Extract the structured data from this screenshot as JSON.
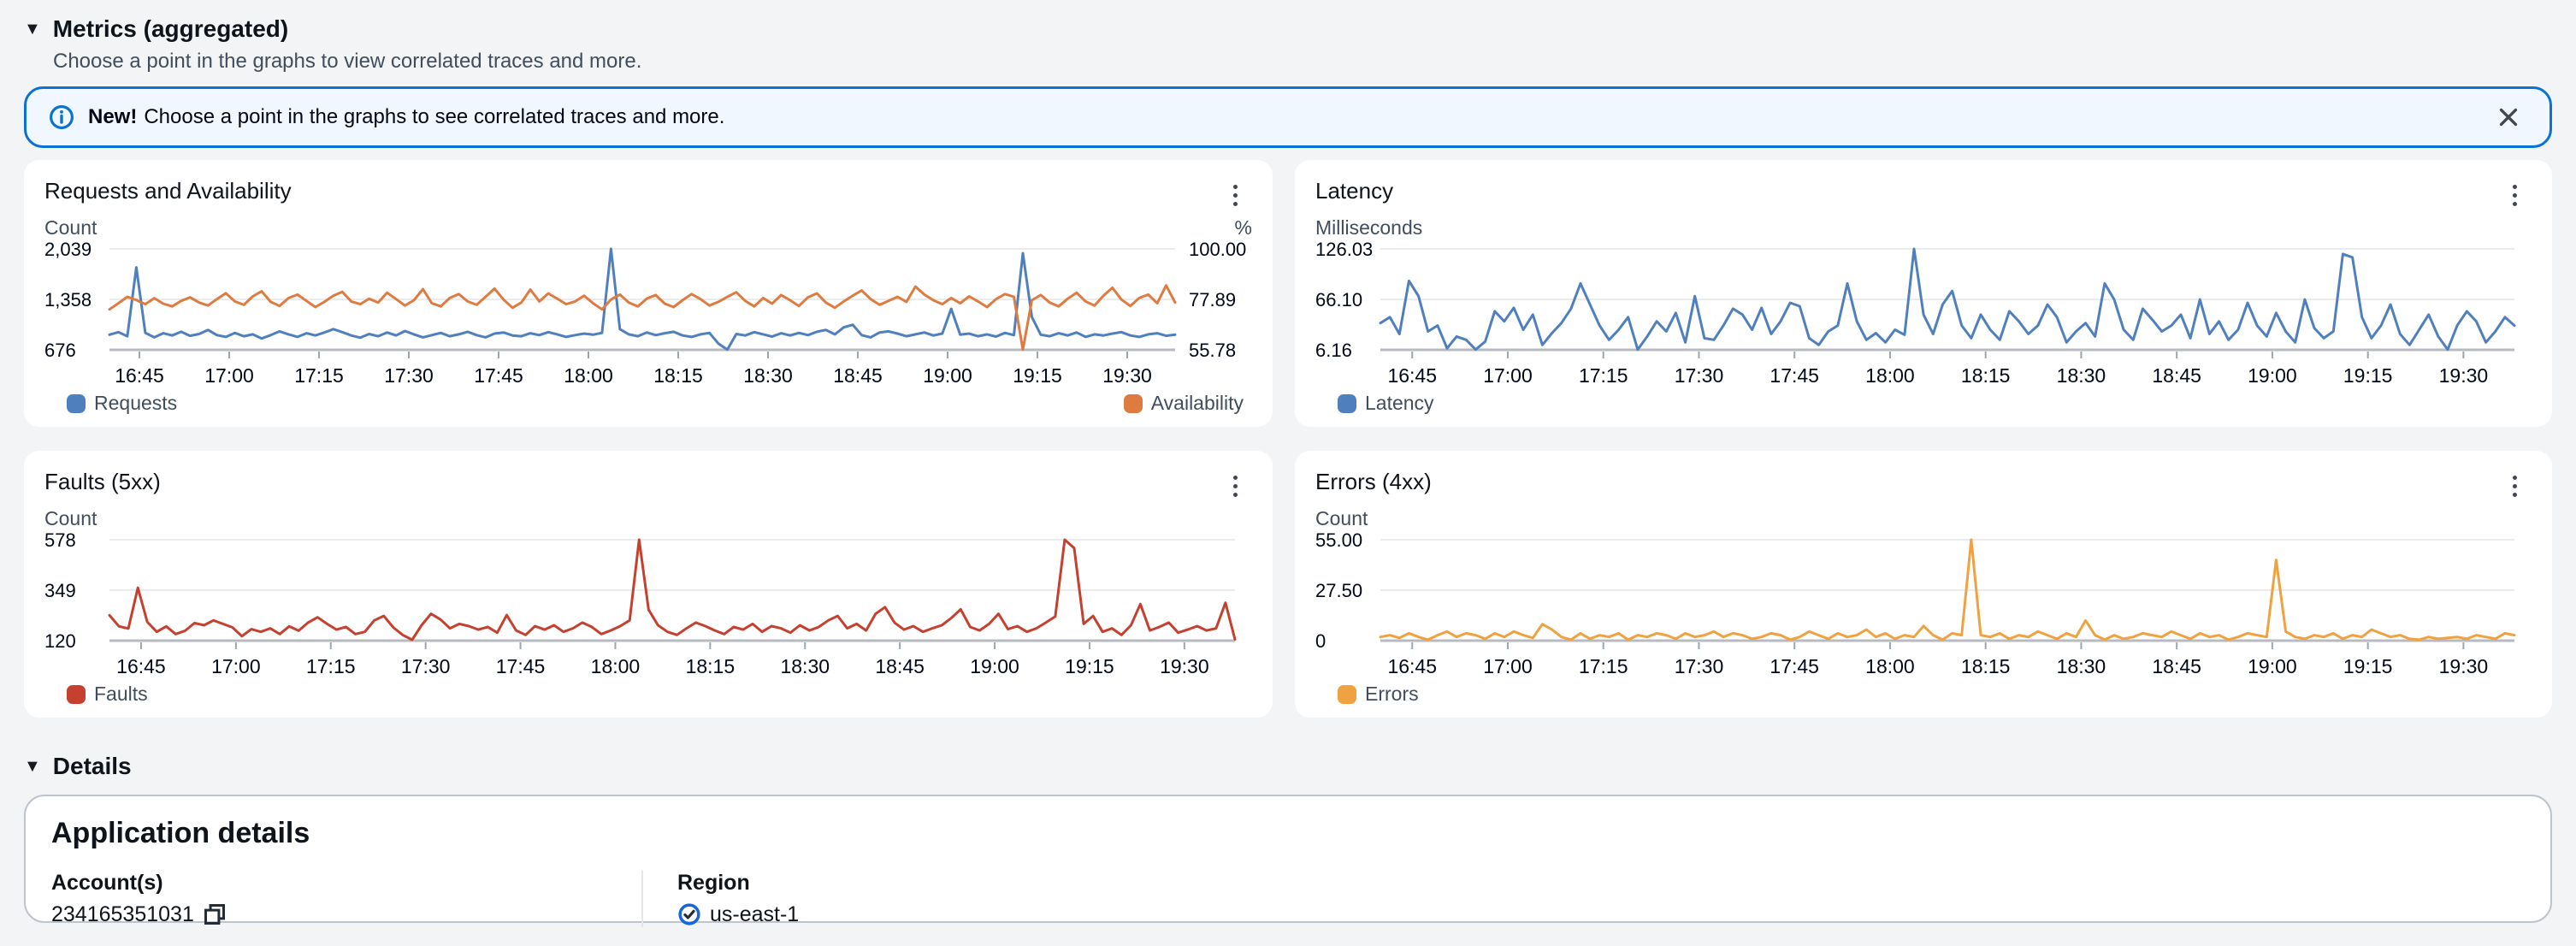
{
  "header": {
    "collapse_icon": "▼",
    "title": "Metrics (aggregated)",
    "subtitle": "Choose a point in the graphs to view correlated traces and more."
  },
  "banner": {
    "lead": "New!",
    "message": "Choose a point in the graphs to see correlated traces and more.",
    "accent_color": "#0972d3",
    "bg_color": "#f0f7ff",
    "icons": {
      "info": "info-circle",
      "close": "x-mark"
    }
  },
  "details": {
    "collapse_icon": "▼",
    "section_title": "Details",
    "card_title": "Application details",
    "account_label": "Account(s)",
    "account_value": "234165351031",
    "region_label": "Region",
    "region_value": "us-east-1",
    "icons": {
      "copy": "copy-squares",
      "region_status": "check-circle"
    }
  },
  "chart_data": [
    {
      "type": "line",
      "title": "Requests and Availability",
      "y_left": {
        "label": "Count",
        "ticks": [
          "676",
          "1,358",
          "2,039"
        ],
        "min": 676,
        "max": 2039
      },
      "y_right": {
        "label": "%",
        "ticks": [
          "55.78",
          "77.89",
          "100.00"
        ],
        "min": 55.78,
        "max": 100
      },
      "x_ticks": [
        "16:45",
        "17:00",
        "17:15",
        "17:30",
        "17:45",
        "18:00",
        "18:15",
        "18:30",
        "18:45",
        "19:00",
        "19:15",
        "19:30"
      ],
      "x_tick_minutes": [
        5,
        20,
        35,
        50,
        65,
        80,
        95,
        110,
        125,
        140,
        155,
        170
      ],
      "x_domain_minutes": [
        0,
        178
      ],
      "series": [
        {
          "name": "Requests",
          "axis": "left",
          "color": "#4f80bd",
          "values": [
            880,
            915,
            860,
            1790,
            905,
            845,
            900,
            870,
            920,
            865,
            890,
            945,
            875,
            850,
            905,
            860,
            885,
            830,
            875,
            925,
            885,
            850,
            900,
            870,
            910,
            955,
            915,
            870,
            840,
            890,
            860,
            910,
            870,
            930,
            885,
            845,
            875,
            905,
            860,
            885,
            920,
            875,
            845,
            895,
            910,
            870,
            860,
            900,
            875,
            915,
            885,
            850,
            875,
            895,
            880,
            905,
            2039,
            955,
            885,
            860,
            910,
            875,
            900,
            920,
            870,
            850,
            885,
            905,
            760,
            680,
            890,
            870,
            915,
            885,
            855,
            900,
            870,
            905,
            875,
            920,
            945,
            885,
            980,
            1015,
            875,
            845,
            910,
            925,
            895,
            860,
            885,
            910,
            870,
            895,
            1230,
            880,
            895,
            860,
            885,
            855,
            905,
            875,
            1980,
            1120,
            880,
            860,
            900,
            870,
            910,
            850,
            885,
            870,
            895,
            915,
            870,
            850,
            885,
            900,
            865,
            880
          ]
        },
        {
          "name": "Availability",
          "axis": "right",
          "color": "#dd7b40",
          "values": [
            73.5,
            76.2,
            79,
            77.6,
            75.8,
            78.4,
            76,
            74.8,
            77.2,
            78.8,
            76.5,
            75.2,
            78,
            80.6,
            77,
            75.5,
            79.2,
            81.4,
            76.8,
            75,
            78.5,
            80,
            77.2,
            74.5,
            76.8,
            79.5,
            81.2,
            77,
            75.8,
            78.2,
            76.5,
            80.8,
            78,
            75.2,
            77.5,
            82.4,
            76.2,
            74.8,
            78.5,
            80.2,
            77,
            75.5,
            79,
            82.6,
            77.8,
            74.2,
            76.5,
            82.2,
            77,
            80.5,
            78.2,
            75.8,
            77,
            79.5,
            76.2,
            73.5,
            77.8,
            80,
            76.5,
            74.8,
            78.2,
            79.8,
            76,
            74.5,
            77.5,
            80.2,
            78,
            75.2,
            76.8,
            79,
            81,
            77.2,
            74.8,
            78.5,
            76,
            79.8,
            77.5,
            75,
            78.8,
            80.5,
            76.5,
            74.2,
            77,
            79.5,
            81.8,
            78,
            75.5,
            77.2,
            79,
            76.8,
            83.5,
            80,
            77.5,
            75.8,
            78.5,
            76.2,
            79.2,
            77,
            74.5,
            78,
            80.2,
            79,
            55.9,
            77.5,
            79.8,
            76.5,
            74.8,
            78.2,
            80.8,
            77,
            75.2,
            79.5,
            83,
            77.8,
            75,
            78.5,
            80,
            76.2,
            84,
            76.5
          ]
        }
      ]
    },
    {
      "type": "line",
      "title": "Latency",
      "y_left": {
        "label": "Milliseconds",
        "ticks": [
          "6.16",
          "66.10",
          "126.03"
        ],
        "min": 6.16,
        "max": 126.03
      },
      "x_ticks": [
        "16:45",
        "17:00",
        "17:15",
        "17:30",
        "17:45",
        "18:00",
        "18:15",
        "18:30",
        "18:45",
        "19:00",
        "19:15",
        "19:30"
      ],
      "x_tick_minutes": [
        5,
        20,
        35,
        50,
        65,
        80,
        95,
        110,
        125,
        140,
        155,
        170
      ],
      "x_domain_minutes": [
        0,
        178
      ],
      "series": [
        {
          "name": "Latency",
          "axis": "left",
          "color": "#4f80bd",
          "values": [
            38,
            45,
            25,
            88,
            70,
            28,
            35,
            8,
            22,
            18,
            6.5,
            16,
            52,
            40,
            56,
            30,
            48,
            12,
            26,
            38,
            55,
            85,
            60,
            35,
            18,
            30,
            45,
            6.5,
            22,
            40,
            28,
            50,
            15,
            70,
            20,
            18,
            35,
            55,
            48,
            30,
            56,
            25,
            40,
            62,
            58,
            20,
            12,
            28,
            35,
            85,
            40,
            18,
            26,
            15,
            30,
            24,
            126,
            48,
            25,
            60,
            76,
            35,
            20,
            48,
            30,
            18,
            52,
            40,
            25,
            35,
            60,
            45,
            15,
            28,
            38,
            22,
            85,
            66,
            30,
            18,
            55,
            42,
            28,
            35,
            48,
            20,
            66,
            25,
            40,
            18,
            30,
            62,
            35,
            22,
            50,
            28,
            15,
            66,
            32,
            20,
            28,
            120,
            116,
            45,
            20,
            35,
            60,
            25,
            12,
            30,
            48,
            22,
            6.5,
            35,
            52,
            40,
            15,
            28,
            45,
            35
          ]
        }
      ]
    },
    {
      "type": "line",
      "title": "Faults (5xx)",
      "y_left": {
        "label": "Count",
        "ticks": [
          "120",
          "349",
          "578"
        ],
        "min": 120,
        "max": 578
      },
      "x_ticks": [
        "16:45",
        "17:00",
        "17:15",
        "17:30",
        "17:45",
        "18:00",
        "18:15",
        "18:30",
        "18:45",
        "19:00",
        "19:15",
        "19:30"
      ],
      "x_tick_minutes": [
        5,
        20,
        35,
        50,
        65,
        80,
        95,
        110,
        125,
        140,
        155,
        170
      ],
      "x_domain_minutes": [
        0,
        178
      ],
      "series": [
        {
          "name": "Faults",
          "axis": "left",
          "color": "#c5402e",
          "values": [
            235,
            185,
            175,
            360,
            205,
            160,
            185,
            150,
            165,
            200,
            190,
            212,
            196,
            180,
            140,
            172,
            160,
            176,
            150,
            185,
            165,
            202,
            226,
            196,
            170,
            182,
            150,
            160,
            212,
            232,
            180,
            146,
            124,
            190,
            242,
            216,
            176,
            196,
            186,
            170,
            182,
            156,
            236,
            166,
            146,
            186,
            170,
            190,
            160,
            176,
            202,
            182,
            150,
            166,
            186,
            212,
            578,
            260,
            190,
            160,
            146,
            176,
            202,
            186,
            166,
            150,
            182,
            170,
            196,
            160,
            186,
            176,
            156,
            190,
            166,
            182,
            212,
            232,
            176,
            196,
            166,
            242,
            272,
            202,
            170,
            186,
            160,
            176,
            190,
            222,
            262,
            182,
            166,
            196,
            242,
            172,
            186,
            160,
            176,
            202,
            230,
            578,
            540,
            196,
            232,
            160,
            176,
            146,
            190,
            286,
            166,
            182,
            202,
            156,
            170,
            186,
            166,
            176,
            292,
            126
          ]
        }
      ]
    },
    {
      "type": "line",
      "title": "Errors (4xx)",
      "y_left": {
        "label": "Count",
        "ticks": [
          "0",
          "27.50",
          "55.00"
        ],
        "min": 0,
        "max": 55
      },
      "x_ticks": [
        "16:45",
        "17:00",
        "17:15",
        "17:30",
        "17:45",
        "18:00",
        "18:15",
        "18:30",
        "18:45",
        "19:00",
        "19:15",
        "19:30"
      ],
      "x_tick_minutes": [
        5,
        20,
        35,
        50,
        65,
        80,
        95,
        110,
        125,
        140,
        155,
        170
      ],
      "x_domain_minutes": [
        0,
        178
      ],
      "series": [
        {
          "name": "Errors",
          "axis": "left",
          "color": "#efa23f",
          "values": [
            2,
            3,
            1.5,
            4,
            2,
            0.5,
            3,
            5,
            2,
            4,
            3,
            1,
            4,
            2,
            5,
            3,
            1.5,
            9,
            6,
            2,
            0.5,
            4,
            1,
            3,
            2,
            4,
            0.5,
            3,
            2,
            4,
            3,
            1,
            4,
            2,
            3,
            5,
            2,
            4,
            3,
            1,
            2,
            4,
            3,
            0.5,
            2,
            5,
            3,
            1,
            4,
            2,
            3,
            6,
            2,
            4,
            1,
            3,
            2,
            8,
            3,
            0.5,
            4,
            3,
            55,
            3,
            2,
            4,
            1,
            3,
            2,
            5,
            3,
            1,
            4,
            2,
            11,
            3,
            0.5,
            3,
            1,
            2,
            4,
            3,
            2,
            5,
            3,
            1,
            4,
            2,
            3,
            0.5,
            2,
            4,
            3,
            2,
            44,
            5,
            2,
            1,
            3,
            2,
            4,
            1,
            3,
            2,
            6,
            4,
            2,
            3,
            1,
            0.5,
            2,
            1,
            1.5,
            2,
            1,
            3,
            2,
            1,
            4,
            3
          ]
        }
      ]
    }
  ]
}
